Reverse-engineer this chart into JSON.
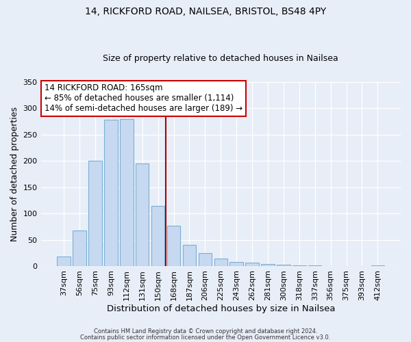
{
  "title_line1": "14, RICKFORD ROAD, NAILSEA, BRISTOL, BS48 4PY",
  "title_line2": "Size of property relative to detached houses in Nailsea",
  "xlabel": "Distribution of detached houses by size in Nailsea",
  "ylabel": "Number of detached properties",
  "bar_labels": [
    "37sqm",
    "56sqm",
    "75sqm",
    "93sqm",
    "112sqm",
    "131sqm",
    "150sqm",
    "168sqm",
    "187sqm",
    "206sqm",
    "225sqm",
    "243sqm",
    "262sqm",
    "281sqm",
    "300sqm",
    "318sqm",
    "337sqm",
    "356sqm",
    "375sqm",
    "393sqm",
    "412sqm"
  ],
  "bar_values": [
    18,
    68,
    200,
    278,
    279,
    195,
    114,
    77,
    40,
    25,
    14,
    8,
    6,
    4,
    3,
    1,
    1,
    0,
    0,
    0,
    2
  ],
  "bar_color": "#c6d9f0",
  "bar_edge_color": "#7bafd4",
  "background_color": "#e8eef8",
  "ylim": [
    0,
    350
  ],
  "yticks": [
    0,
    50,
    100,
    150,
    200,
    250,
    300,
    350
  ],
  "vline_x": 6.5,
  "vline_color": "#aa0000",
  "annotation_title": "14 RICKFORD ROAD: 165sqm",
  "annotation_line1": "← 85% of detached houses are smaller (1,114)",
  "annotation_line2": "14% of semi-detached houses are larger (189) →",
  "annotation_box_color": "#ffffff",
  "annotation_box_edge_color": "#cc0000",
  "footer_line1": "Contains HM Land Registry data © Crown copyright and database right 2024.",
  "footer_line2": "Contains public sector information licensed under the Open Government Licence v3.0."
}
